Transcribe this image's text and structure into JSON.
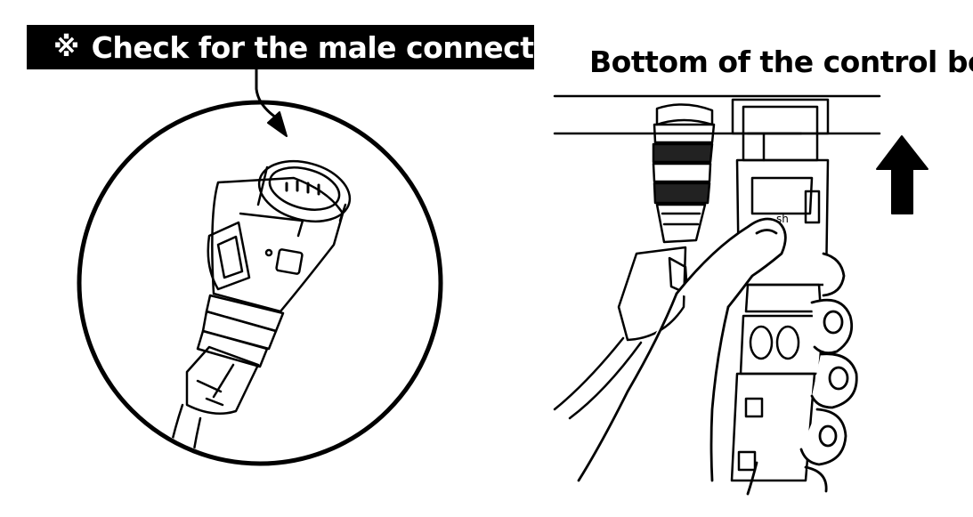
{
  "left_panel": {
    "reference_mark": "※",
    "label": "Check for the male connector"
  },
  "right_panel": {
    "title": "Bottom of the control box",
    "connector_marking": "sh"
  },
  "colors": {
    "ink": "#000000",
    "paper": "#ffffff"
  },
  "icons": [
    "pointer-arrow-icon",
    "up-arrow-icon"
  ]
}
